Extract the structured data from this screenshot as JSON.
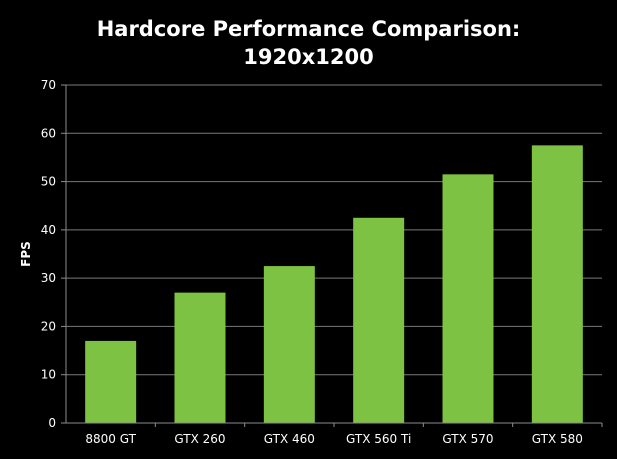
{
  "chart_data": {
    "type": "bar",
    "title_lines": [
      "Hardcore Performance Comparison:",
      "1920x1200"
    ],
    "xlabel": "",
    "ylabel": "FPS",
    "ylim": [
      0,
      70
    ],
    "yticks": [
      "0",
      "10",
      "20",
      "30",
      "40",
      "50",
      "60",
      "70"
    ],
    "ytick_values": [
      0,
      10,
      20,
      30,
      40,
      50,
      60,
      70
    ],
    "categories": [
      "8800 GT",
      "GTX 260",
      "GTX 460",
      "GTX 560 Ti",
      "GTX 570",
      "GTX 580"
    ],
    "values": [
      17,
      27,
      32.5,
      42.5,
      51.5,
      57.5
    ],
    "grid": true,
    "colors": {
      "bar": "#7dc242",
      "background": "#000000",
      "grid": "#7a7a7a",
      "axis": "#8c8c8c",
      "text": "#ffffff"
    }
  }
}
